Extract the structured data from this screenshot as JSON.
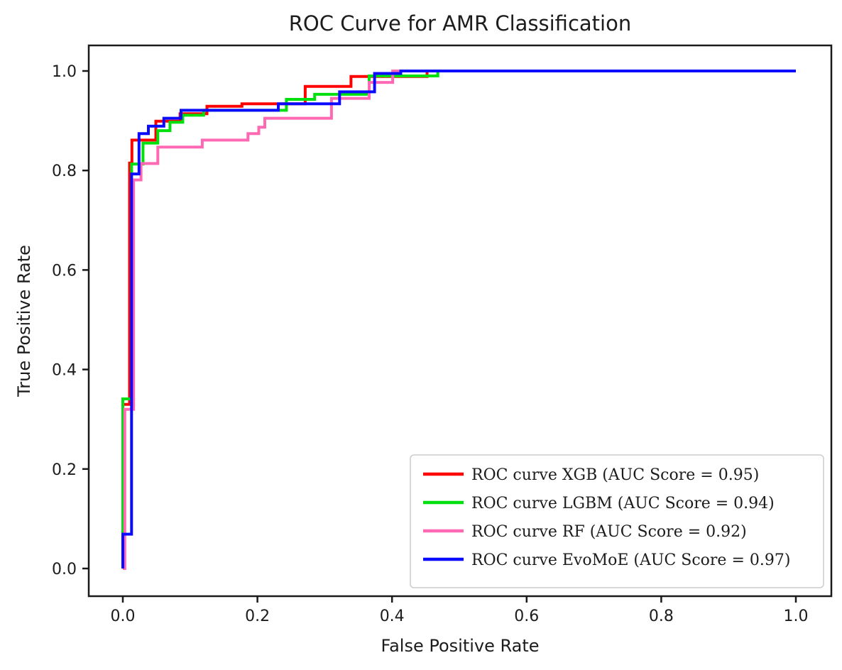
{
  "figure": {
    "background": "#ffffff",
    "text_color": "#1c1c1c",
    "spine_color": "#1a1a1a",
    "legend_border_color": "#cccccc"
  },
  "chart_data": {
    "type": "line",
    "subtype": "roc-step-curve",
    "title": "ROC Curve for AMR Classification",
    "xlabel": "False Positive Rate",
    "ylabel": "True Positive Rate",
    "xlim": [
      0.0,
      1.0
    ],
    "ylim": [
      0.0,
      1.0
    ],
    "xticks": [
      0.0,
      0.2,
      0.4,
      0.6,
      0.8,
      1.0
    ],
    "yticks": [
      0.0,
      0.2,
      0.4,
      0.6,
      0.8,
      1.0
    ],
    "grid": false,
    "legend_position": "lower right",
    "series": [
      {
        "name": "XGB",
        "auc": 0.95,
        "color": "#ff0000",
        "legend_label": "ROC curve XGB (AUC Score = 0.95)",
        "points": [
          [
            0,
            0
          ],
          [
            0,
            0.33
          ],
          [
            0.01,
            0.33
          ],
          [
            0.01,
            0.815
          ],
          [
            0.0135,
            0.815
          ],
          [
            0.0135,
            0.861
          ],
          [
            0.049,
            0.861
          ],
          [
            0.049,
            0.899
          ],
          [
            0.085,
            0.899
          ],
          [
            0.085,
            0.914
          ],
          [
            0.125,
            0.914
          ],
          [
            0.125,
            0.929
          ],
          [
            0.177,
            0.929
          ],
          [
            0.177,
            0.934
          ],
          [
            0.271,
            0.934
          ],
          [
            0.271,
            0.969
          ],
          [
            0.339,
            0.969
          ],
          [
            0.339,
            0.989
          ],
          [
            0.452,
            0.989
          ],
          [
            0.452,
            1.0
          ],
          [
            1,
            1
          ]
        ]
      },
      {
        "name": "LGBM",
        "auc": 0.94,
        "color": "#00e00e",
        "legend_label": "ROC curve LGBM (AUC Score = 0.94)",
        "points": [
          [
            0,
            0
          ],
          [
            0,
            0.341
          ],
          [
            0.013,
            0.341
          ],
          [
            0.013,
            0.813
          ],
          [
            0.03,
            0.813
          ],
          [
            0.03,
            0.855
          ],
          [
            0.052,
            0.855
          ],
          [
            0.052,
            0.88
          ],
          [
            0.07,
            0.88
          ],
          [
            0.07,
            0.897
          ],
          [
            0.089,
            0.897
          ],
          [
            0.089,
            0.911
          ],
          [
            0.12,
            0.911
          ],
          [
            0.12,
            0.921
          ],
          [
            0.243,
            0.921
          ],
          [
            0.243,
            0.943
          ],
          [
            0.285,
            0.943
          ],
          [
            0.285,
            0.953
          ],
          [
            0.366,
            0.953
          ],
          [
            0.366,
            0.99
          ],
          [
            0.468,
            0.99
          ],
          [
            0.468,
            1.0
          ],
          [
            1,
            1
          ]
        ]
      },
      {
        "name": "RF",
        "auc": 0.92,
        "color": "#ff69b4",
        "legend_label": "ROC curve RF (AUC Score = 0.92)",
        "points": [
          [
            0,
            0
          ],
          [
            0.003,
            0
          ],
          [
            0.003,
            0.32
          ],
          [
            0.016,
            0.32
          ],
          [
            0.016,
            0.781
          ],
          [
            0.027,
            0.781
          ],
          [
            0.027,
            0.814
          ],
          [
            0.052,
            0.814
          ],
          [
            0.052,
            0.847
          ],
          [
            0.118,
            0.847
          ],
          [
            0.118,
            0.861
          ],
          [
            0.186,
            0.861
          ],
          [
            0.186,
            0.874
          ],
          [
            0.202,
            0.874
          ],
          [
            0.202,
            0.887
          ],
          [
            0.211,
            0.887
          ],
          [
            0.211,
            0.905
          ],
          [
            0.31,
            0.905
          ],
          [
            0.31,
            0.945
          ],
          [
            0.366,
            0.945
          ],
          [
            0.366,
            0.977
          ],
          [
            0.401,
            0.977
          ],
          [
            0.401,
            1.0
          ],
          [
            1,
            1
          ]
        ]
      },
      {
        "name": "EvoMoE",
        "auc": 0.97,
        "color": "#0a0aff",
        "legend_label": "ROC curve EvoMoE (AUC Score = 0.97)",
        "points": [
          [
            0,
            0
          ],
          [
            0,
            0.069
          ],
          [
            0.013,
            0.069
          ],
          [
            0.013,
            0.793
          ],
          [
            0.024,
            0.793
          ],
          [
            0.024,
            0.874
          ],
          [
            0.038,
            0.874
          ],
          [
            0.038,
            0.889
          ],
          [
            0.061,
            0.889
          ],
          [
            0.061,
            0.905
          ],
          [
            0.0865,
            0.905
          ],
          [
            0.0865,
            0.921
          ],
          [
            0.231,
            0.921
          ],
          [
            0.231,
            0.934
          ],
          [
            0.322,
            0.934
          ],
          [
            0.322,
            0.958
          ],
          [
            0.374,
            0.958
          ],
          [
            0.374,
            0.995
          ],
          [
            0.413,
            0.995
          ],
          [
            0.413,
            1.0
          ],
          [
            1,
            1
          ]
        ]
      }
    ]
  }
}
